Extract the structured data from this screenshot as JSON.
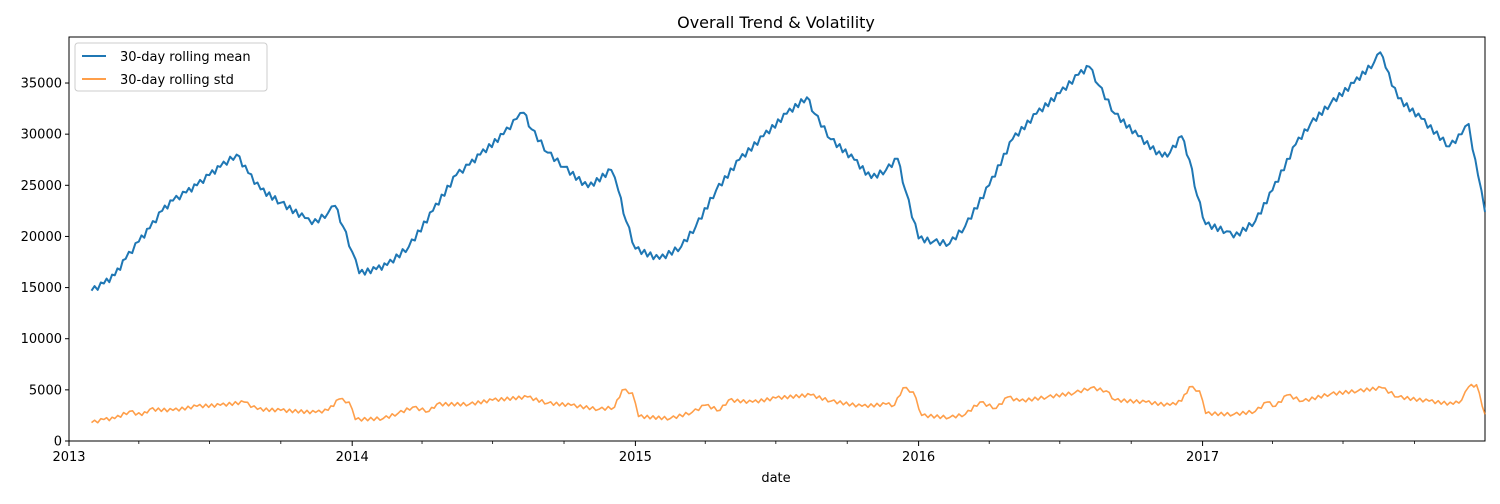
{
  "chart_data": {
    "type": "line",
    "title": "Overall Trend & Volatility",
    "xlabel": "date",
    "ylabel": "",
    "x_ticks": [
      "2013",
      "2014",
      "2015",
      "2016",
      "2017"
    ],
    "y_ticks": [
      "0",
      "5000",
      "10000",
      "15000",
      "20000",
      "25000",
      "30000",
      "35000"
    ],
    "ylim": [
      0,
      39500
    ],
    "xlim": [
      "2013-01-01",
      "2017-12-31"
    ],
    "legend_position": "top-left",
    "grid": false,
    "series": [
      {
        "name": "30-day rolling mean",
        "color": "#1f77b4",
        "points": [
          [
            "2013-01-30",
            14700
          ],
          [
            "2013-02-15",
            15400
          ],
          [
            "2013-03-01",
            16200
          ],
          [
            "2013-03-15",
            17800
          ],
          [
            "2013-04-01",
            19500
          ],
          [
            "2013-04-15",
            20800
          ],
          [
            "2013-05-01",
            22500
          ],
          [
            "2013-05-15",
            23500
          ],
          [
            "2013-06-01",
            24300
          ],
          [
            "2013-06-15",
            25000
          ],
          [
            "2013-07-01",
            26000
          ],
          [
            "2013-07-15",
            26800
          ],
          [
            "2013-08-05",
            28000
          ],
          [
            "2013-08-20",
            26200
          ],
          [
            "2013-09-05",
            24600
          ],
          [
            "2013-10-01",
            23300
          ],
          [
            "2013-11-01",
            21800
          ],
          [
            "2013-11-10",
            21200
          ],
          [
            "2013-12-01",
            22300
          ],
          [
            "2013-12-10",
            23000
          ],
          [
            "2013-12-20",
            21000
          ],
          [
            "2014-01-01",
            18500
          ],
          [
            "2014-01-10",
            16400
          ],
          [
            "2014-02-01",
            16800
          ],
          [
            "2014-02-15",
            17200
          ],
          [
            "2014-03-15",
            19000
          ],
          [
            "2014-04-15",
            22500
          ],
          [
            "2014-05-15",
            26000
          ],
          [
            "2014-06-01",
            27000
          ],
          [
            "2014-06-15",
            28000
          ],
          [
            "2014-07-15",
            30000
          ],
          [
            "2014-08-01",
            31500
          ],
          [
            "2014-08-10",
            32100
          ],
          [
            "2014-08-20",
            30500
          ],
          [
            "2014-09-10",
            28200
          ],
          [
            "2014-10-01",
            26800
          ],
          [
            "2014-11-01",
            24800
          ],
          [
            "2014-12-01",
            26500
          ],
          [
            "2014-12-10",
            24500
          ],
          [
            "2014-12-20",
            21500
          ],
          [
            "2015-01-01",
            18800
          ],
          [
            "2015-02-01",
            17800
          ],
          [
            "2015-03-01",
            19000
          ],
          [
            "2015-03-20",
            21000
          ],
          [
            "2015-04-15",
            24500
          ],
          [
            "2015-05-15",
            27500
          ],
          [
            "2015-06-15",
            29800
          ],
          [
            "2015-07-15",
            32000
          ],
          [
            "2015-08-10",
            33600
          ],
          [
            "2015-08-20",
            32000
          ],
          [
            "2015-09-10",
            29500
          ],
          [
            "2015-10-10",
            27500
          ],
          [
            "2015-11-01",
            25700
          ],
          [
            "2015-11-20",
            26500
          ],
          [
            "2015-12-05",
            27600
          ],
          [
            "2015-12-15",
            24500
          ],
          [
            "2016-01-01",
            19800
          ],
          [
            "2016-01-20",
            19500
          ],
          [
            "2016-02-10",
            19300
          ],
          [
            "2016-03-01",
            21000
          ],
          [
            "2016-04-01",
            25000
          ],
          [
            "2016-05-01",
            29500
          ],
          [
            "2016-06-01",
            32000
          ],
          [
            "2016-07-01",
            34000
          ],
          [
            "2016-07-25",
            35800
          ],
          [
            "2016-08-08",
            36600
          ],
          [
            "2016-08-20",
            34800
          ],
          [
            "2016-09-10",
            32000
          ],
          [
            "2016-10-10",
            29800
          ],
          [
            "2016-11-10",
            27800
          ],
          [
            "2016-11-20",
            28200
          ],
          [
            "2016-12-05",
            29800
          ],
          [
            "2016-12-15",
            27500
          ],
          [
            "2016-12-25",
            24000
          ],
          [
            "2017-01-05",
            21200
          ],
          [
            "2017-02-01",
            20500
          ],
          [
            "2017-02-10",
            19900
          ],
          [
            "2017-03-10",
            21500
          ],
          [
            "2017-04-01",
            24500
          ],
          [
            "2017-05-01",
            29000
          ],
          [
            "2017-05-20",
            31000
          ],
          [
            "2017-06-15",
            33000
          ],
          [
            "2017-07-15",
            35000
          ],
          [
            "2017-08-10",
            37000
          ],
          [
            "2017-08-18",
            38000
          ],
          [
            "2017-08-25",
            36500
          ],
          [
            "2017-09-10",
            33500
          ],
          [
            "2017-10-10",
            31500
          ],
          [
            "2017-11-15",
            28800
          ],
          [
            "2017-12-01",
            30000
          ],
          [
            "2017-12-10",
            31000
          ],
          [
            "2017-12-15",
            28500
          ],
          [
            "2017-12-22",
            26000
          ],
          [
            "2017-12-31",
            22400
          ]
        ]
      },
      {
        "name": "30-day rolling std",
        "color": "#ff7f0e",
        "points": [
          [
            "2013-01-30",
            1800
          ],
          [
            "2013-02-15",
            2100
          ],
          [
            "2013-03-01",
            2200
          ],
          [
            "2013-03-20",
            2900
          ],
          [
            "2013-04-05",
            2500
          ],
          [
            "2013-04-15",
            3100
          ],
          [
            "2013-05-15",
            3000
          ],
          [
            "2013-06-15",
            3400
          ],
          [
            "2013-07-15",
            3500
          ],
          [
            "2013-08-15",
            3800
          ],
          [
            "2013-09-01",
            3100
          ],
          [
            "2013-10-01",
            3000
          ],
          [
            "2013-11-15",
            2800
          ],
          [
            "2013-12-01",
            3000
          ],
          [
            "2013-12-15",
            4100
          ],
          [
            "2013-12-28",
            3800
          ],
          [
            "2014-01-05",
            2100
          ],
          [
            "2014-02-10",
            2200
          ],
          [
            "2014-03-01",
            2700
          ],
          [
            "2014-03-20",
            3300
          ],
          [
            "2014-04-10",
            2900
          ],
          [
            "2014-04-20",
            3600
          ],
          [
            "2014-06-01",
            3600
          ],
          [
            "2014-07-01",
            4000
          ],
          [
            "2014-08-15",
            4300
          ],
          [
            "2014-09-10",
            3700
          ],
          [
            "2014-10-10",
            3500
          ],
          [
            "2014-11-15",
            3100
          ],
          [
            "2014-12-05",
            3300
          ],
          [
            "2014-12-15",
            5000
          ],
          [
            "2014-12-28",
            4700
          ],
          [
            "2015-01-05",
            2400
          ],
          [
            "2015-02-15",
            2200
          ],
          [
            "2015-03-15",
            2800
          ],
          [
            "2015-04-01",
            3500
          ],
          [
            "2015-04-20",
            3000
          ],
          [
            "2015-05-01",
            4000
          ],
          [
            "2015-06-01",
            3800
          ],
          [
            "2015-07-01",
            4200
          ],
          [
            "2015-08-15",
            4500
          ],
          [
            "2015-09-10",
            3900
          ],
          [
            "2015-10-20",
            3400
          ],
          [
            "2015-11-20",
            3600
          ],
          [
            "2015-12-01",
            3500
          ],
          [
            "2015-12-12",
            5200
          ],
          [
            "2015-12-25",
            4800
          ],
          [
            "2016-01-05",
            2500
          ],
          [
            "2016-02-10",
            2300
          ],
          [
            "2016-03-01",
            2600
          ],
          [
            "2016-03-20",
            3800
          ],
          [
            "2016-04-10",
            3200
          ],
          [
            "2016-04-25",
            4300
          ],
          [
            "2016-05-10",
            3900
          ],
          [
            "2016-06-15",
            4300
          ],
          [
            "2016-07-20",
            4700
          ],
          [
            "2016-08-10",
            5200
          ],
          [
            "2016-08-30",
            4900
          ],
          [
            "2016-09-10",
            4000
          ],
          [
            "2016-10-20",
            3800
          ],
          [
            "2016-11-20",
            3500
          ],
          [
            "2016-12-05",
            3900
          ],
          [
            "2016-12-15",
            5300
          ],
          [
            "2016-12-28",
            4900
          ],
          [
            "2017-01-05",
            2700
          ],
          [
            "2017-02-10",
            2600
          ],
          [
            "2017-03-10",
            2900
          ],
          [
            "2017-03-25",
            3800
          ],
          [
            "2017-04-05",
            3400
          ],
          [
            "2017-04-20",
            4500
          ],
          [
            "2017-05-10",
            3900
          ],
          [
            "2017-06-15",
            4600
          ],
          [
            "2017-07-20",
            4900
          ],
          [
            "2017-08-20",
            5200
          ],
          [
            "2017-09-10",
            4300
          ],
          [
            "2017-10-20",
            3900
          ],
          [
            "2017-11-20",
            3600
          ],
          [
            "2017-12-01",
            4000
          ],
          [
            "2017-12-10",
            5300
          ],
          [
            "2017-12-20",
            5500
          ],
          [
            "2017-12-31",
            2600
          ]
        ]
      }
    ]
  }
}
